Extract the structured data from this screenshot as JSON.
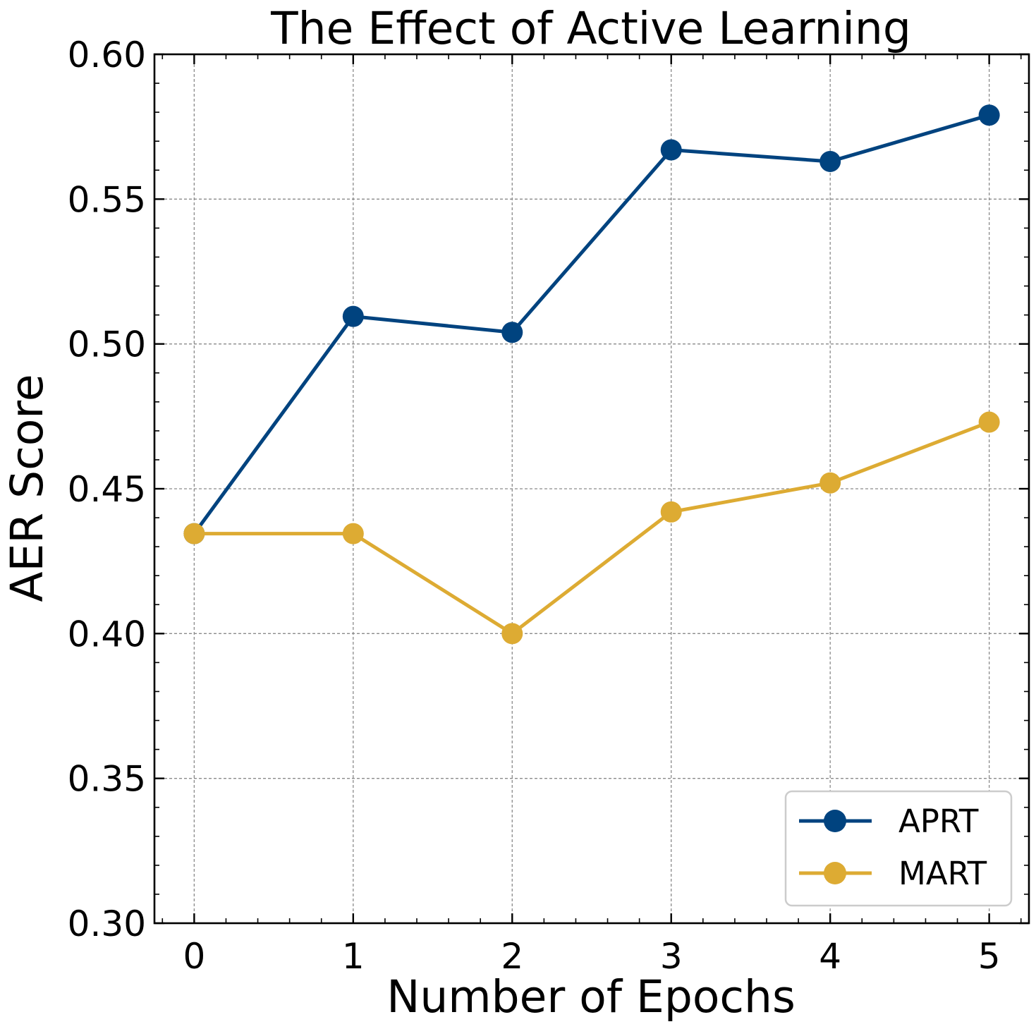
{
  "colors": {
    "aprt": "#00437f",
    "mart": "#ddab33",
    "axis": "#000000",
    "grid": "#8a8a8a"
  },
  "chart_data": {
    "type": "line",
    "title": "The Effect of Active Learning",
    "xlabel": "Number of Epochs",
    "ylabel": "AER Score",
    "x": [
      0,
      1,
      2,
      3,
      4,
      5
    ],
    "xticks": [
      "0",
      "1",
      "2",
      "3",
      "4",
      "5"
    ],
    "yticks": [
      "0.30",
      "0.35",
      "0.40",
      "0.45",
      "0.50",
      "0.55",
      "0.60"
    ],
    "xlim": [
      -0.25,
      5.25
    ],
    "ylim": [
      0.3,
      0.6
    ],
    "grid": true,
    "legend_position": "bottom-right",
    "series": [
      {
        "name": "APRT",
        "color": "#00437f",
        "marker": "circle",
        "values": [
          0.4345,
          0.5095,
          0.504,
          0.567,
          0.563,
          0.579
        ]
      },
      {
        "name": "MART",
        "color": "#ddab33",
        "marker": "circle",
        "values": [
          0.4345,
          0.4345,
          0.4,
          0.442,
          0.452,
          0.473
        ]
      }
    ]
  }
}
